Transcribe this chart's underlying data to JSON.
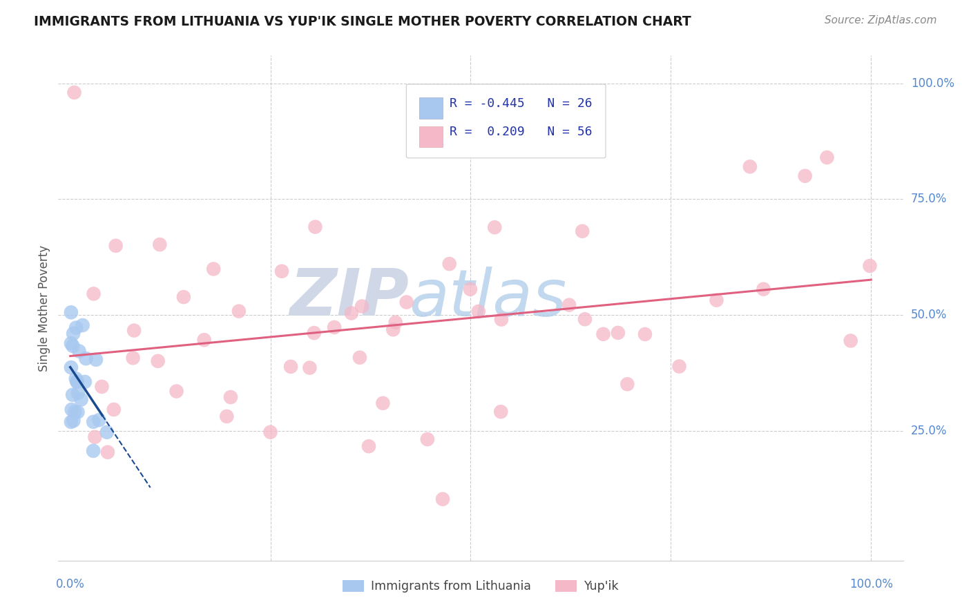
{
  "title": "IMMIGRANTS FROM LITHUANIA VS YUP'IK SINGLE MOTHER POVERTY CORRELATION CHART",
  "source": "Source: ZipAtlas.com",
  "ylabel": "Single Mother Poverty",
  "ytick_labels": [
    "100.0%",
    "75.0%",
    "50.0%",
    "25.0%"
  ],
  "ytick_positions": [
    1.0,
    0.75,
    0.5,
    0.25
  ],
  "legend_labels": [
    "Immigrants from Lithuania",
    "Yup'ik"
  ],
  "blue_R": -0.445,
  "blue_N": 26,
  "pink_R": 0.209,
  "pink_N": 56,
  "blue_color": "#a8c8f0",
  "pink_color": "#f4b8c8",
  "blue_line_color": "#1a4a90",
  "pink_line_color": "#e06080",
  "background_color": "#ffffff",
  "grid_color": "#cccccc",
  "title_color": "#1a1a1a",
  "axis_label_color": "#555555",
  "tick_label_color": "#5588cc",
  "source_color": "#888888",
  "legend_text_color": "#2233aa",
  "watermark_zip_color": "#d0d8e8",
  "watermark_atlas_color": "#a8c0e0"
}
